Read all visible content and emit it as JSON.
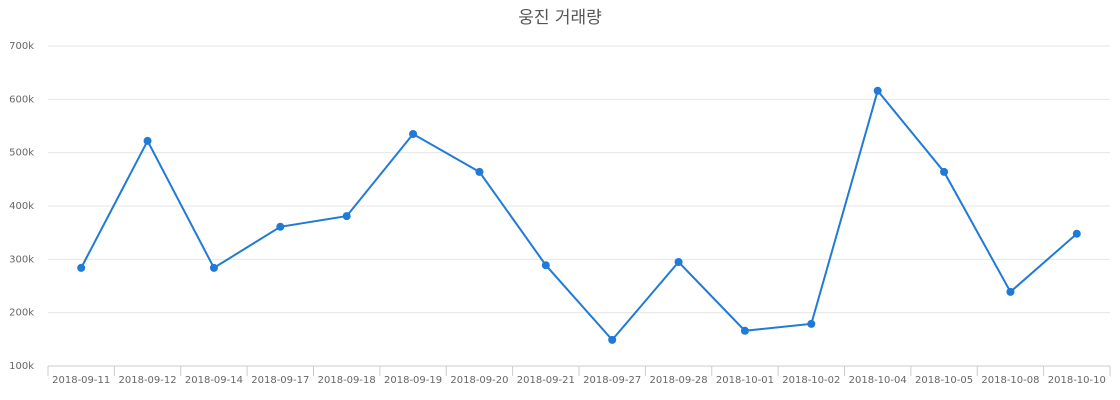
{
  "chart_data": {
    "type": "line",
    "title": "웅진 거래량",
    "categories": [
      "2018-09-11",
      "2018-09-12",
      "2018-09-14",
      "2018-09-17",
      "2018-09-18",
      "2018-09-19",
      "2018-09-20",
      "2018-09-21",
      "2018-09-27",
      "2018-09-28",
      "2018-10-01",
      "2018-10-02",
      "2018-10-04",
      "2018-10-05",
      "2018-10-08",
      "2018-10-10"
    ],
    "values": [
      284000,
      522000,
      284000,
      361000,
      381000,
      535000,
      464000,
      289000,
      149000,
      295000,
      166000,
      179000,
      616000,
      464000,
      239000,
      348000
    ],
    "color": "#1f7ad8",
    "ylim": [
      100000,
      700000
    ],
    "yticks": [
      {
        "value": 100000,
        "label": "100k"
      },
      {
        "value": 200000,
        "label": "200k"
      },
      {
        "value": 300000,
        "label": "300k"
      },
      {
        "value": 400000,
        "label": "400k"
      },
      {
        "value": 500000,
        "label": "500k"
      },
      {
        "value": 600000,
        "label": "600k"
      },
      {
        "value": 700000,
        "label": "700k"
      }
    ],
    "grid": true
  }
}
